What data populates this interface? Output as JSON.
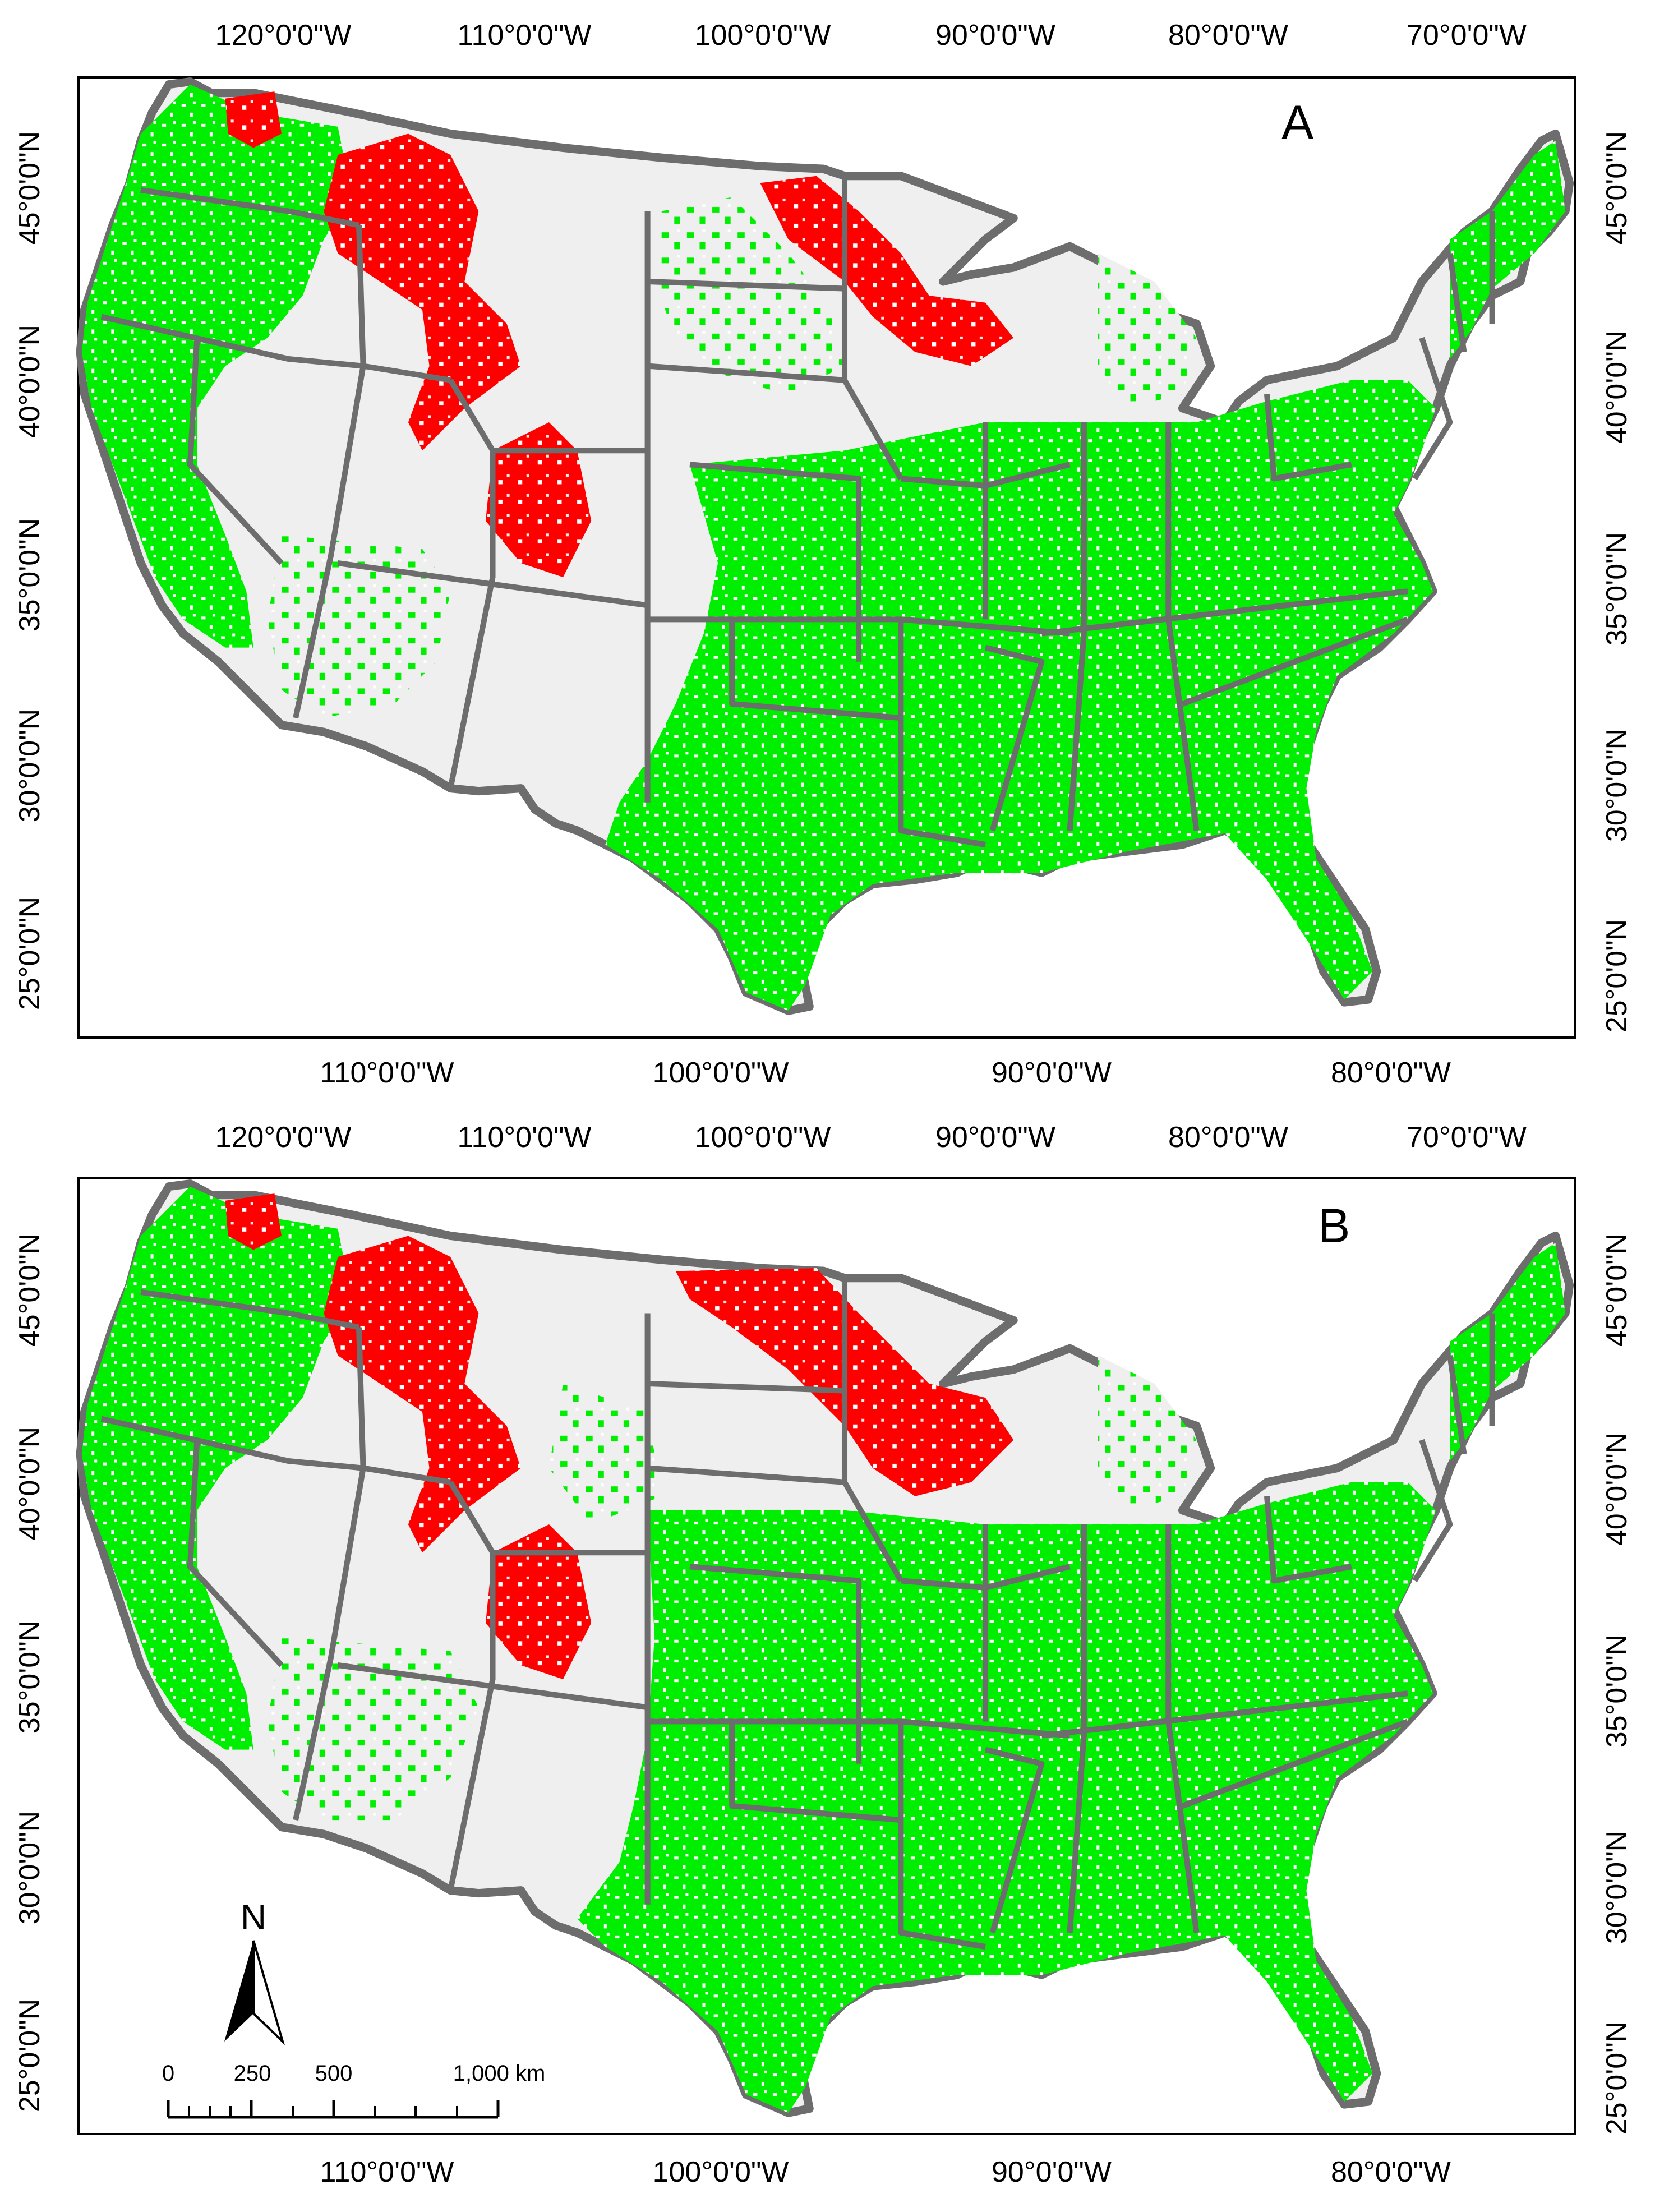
{
  "panels": [
    {
      "letter": "A",
      "top_axis": [
        "120°0'0\"W",
        "110°0'0\"W",
        "100°0'0\"W",
        "90°0'0\"W",
        "80°0'0\"W",
        "70°0'0\"W"
      ],
      "bottom_axis": [
        "110°0'0\"W",
        "100°0'0\"W",
        "90°0'0\"W",
        "80°0'0\"W"
      ],
      "left_axis": [
        "45°0'0\"N",
        "40°0'0\"N",
        "35°0'0\"N",
        "30°0'0\"N",
        "25°0'0\"N"
      ],
      "right_axis": [
        "45°0'0\"N",
        "40°0'0\"N",
        "35°0'0\"N",
        "30°0'0\"N",
        "25°0'0\"N"
      ]
    },
    {
      "letter": "B",
      "top_axis": [
        "120°0'0\"W",
        "110°0'0\"W",
        "100°0'0\"W",
        "90°0'0\"W",
        "80°0'0\"W",
        "70°0'0\"W"
      ],
      "bottom_axis": [
        "110°0'0\"W",
        "100°0'0\"W",
        "90°0'0\"W",
        "80°0'0\"W"
      ],
      "left_axis": [
        "45°0'0\"N",
        "40°0'0\"N",
        "35°0'0\"N",
        "30°0'0\"N",
        "25°0'0\"N"
      ],
      "right_axis": [
        "45°0'0\"N",
        "40°0'0\"N",
        "35°0'0\"N",
        "30°0'0\"N",
        "25°0'0\"N"
      ]
    }
  ],
  "north_arrow": {
    "label": "N"
  },
  "scale_bar": {
    "labels": [
      "0",
      "250",
      "500",
      "1,000 km"
    ]
  },
  "colors": {
    "green": "#00ee00",
    "red": "#ff0000",
    "background_land": "#efefef",
    "border": "#6d6d6d"
  }
}
